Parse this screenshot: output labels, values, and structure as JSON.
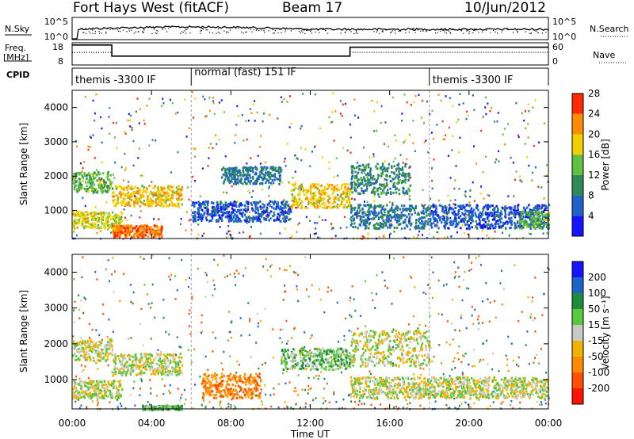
{
  "header": {
    "station": "Fort Hays West (fitACF)",
    "beam": "Beam 17",
    "date": "10/Jun/2012"
  },
  "noise_panel": {
    "left_label": "N.Sky",
    "right_label": "N.Search",
    "left_ticks": [
      "10^5",
      "10^0"
    ],
    "right_ticks": [
      "10^5",
      "10^0"
    ]
  },
  "freq_panel": {
    "left_label_1": "Freq.",
    "left_label_2": "[MHz]",
    "right_label": "Nave",
    "left_ticks": [
      18,
      8
    ],
    "right_ticks": [
      60,
      0
    ],
    "freq_segments": [
      {
        "from": 0,
        "to": 2,
        "value": 17
      },
      {
        "from": 2,
        "to": 14,
        "value": 12
      },
      {
        "from": 14,
        "to": 24,
        "value": 16
      }
    ],
    "nave_segments": [
      {
        "from": 0,
        "to": 2,
        "value": 34
      },
      {
        "from": 2,
        "to": 14,
        "value": 24
      },
      {
        "from": 14,
        "to": 24,
        "value": 34
      }
    ]
  },
  "cpid": {
    "label": "CPID",
    "segments": [
      {
        "from": 0.0,
        "to": 6.0,
        "text": "themis -3300 IF"
      },
      {
        "from": 6.0,
        "to": 18.0,
        "text": "normal (fast) 151 IF"
      },
      {
        "from": 18.0,
        "to": 24.0,
        "text": "themis -3300 IF"
      }
    ]
  },
  "axes": {
    "xlabel": "Time UT",
    "ylabel_top": "Slant Range [km]",
    "ylabel_bottom": "Slant Range [km]",
    "xticks": [
      "00:00",
      "04:00",
      "08:00",
      "12:00",
      "16:00",
      "20:00",
      "00:00"
    ],
    "yticks": [
      "1000",
      "2000",
      "3000",
      "4000"
    ]
  },
  "colorbars": {
    "power": {
      "title": "Power [dB]",
      "labels": [
        "4",
        "8",
        "12",
        "16",
        "20",
        "24",
        "28"
      ],
      "colors": [
        "#1414ff",
        "#1e64c8",
        "#2e8b57",
        "#60c040",
        "#f0d000",
        "#ff8c00",
        "#ff2a00"
      ]
    },
    "velocity": {
      "title": "Velocity [m s⁻¹]",
      "labels": [
        "200",
        "100",
        "50",
        "15",
        "-15",
        "-50",
        "-100",
        "-200"
      ],
      "colors": [
        "#1414ff",
        "#1e64c8",
        "#1e8c3c",
        "#5ac83c",
        "#c8c8c8",
        "#f0b400",
        "#ff8c00",
        "#ff5000",
        "#ff1400"
      ]
    }
  },
  "chart_data": {
    "type": "heatmap",
    "title": "Fort Hays West (fitACF)",
    "xlabel": "Time UT",
    "ylabel": "Slant Range [km]",
    "xlim_hours": [
      0,
      24
    ],
    "ylim_km": [
      180,
      4500
    ],
    "panels": [
      {
        "name": "Power [dB]",
        "clim": [
          0,
          30
        ],
        "regions": [
          {
            "t0": 0.0,
            "t1": 2.0,
            "r0": 1550,
            "r1": 2150,
            "value": 14
          },
          {
            "t0": 2.0,
            "t1": 5.5,
            "r0": 1150,
            "r1": 1750,
            "value": 20
          },
          {
            "t0": 0.0,
            "t1": 2.5,
            "r0": 500,
            "r1": 1000,
            "value": 18
          },
          {
            "t0": 2.0,
            "t1": 4.5,
            "r0": 250,
            "r1": 600,
            "value": 25
          },
          {
            "t0": 6.0,
            "t1": 11.0,
            "r0": 700,
            "r1": 1300,
            "value": 6
          },
          {
            "t0": 7.5,
            "t1": 10.5,
            "r0": 1800,
            "r1": 2300,
            "value": 8
          },
          {
            "t0": 11.0,
            "t1": 14.0,
            "r0": 1100,
            "r1": 1800,
            "value": 20
          },
          {
            "t0": 14.0,
            "t1": 17.0,
            "r0": 1500,
            "r1": 2400,
            "value": 10
          },
          {
            "t0": 14.0,
            "t1": 18.0,
            "r0": 500,
            "r1": 1200,
            "value": 8
          },
          {
            "t0": 18.0,
            "t1": 24.0,
            "r0": 500,
            "r1": 1200,
            "value": 6
          },
          {
            "t0": 22.5,
            "t1": 24.0,
            "r0": 500,
            "r1": 1000,
            "value": 14
          }
        ]
      },
      {
        "name": "Velocity [m s⁻¹]",
        "clim": [
          -200,
          200
        ],
        "regions": [
          {
            "t0": 0.0,
            "t1": 2.0,
            "r0": 1550,
            "r1": 2150,
            "value": 0
          },
          {
            "t0": 2.0,
            "t1": 5.5,
            "r0": 1150,
            "r1": 1750,
            "value": 0
          },
          {
            "t0": 0.0,
            "t1": 2.5,
            "r0": 500,
            "r1": 1000,
            "value": 0
          },
          {
            "t0": 6.5,
            "t1": 9.5,
            "r0": 500,
            "r1": 1200,
            "value": -80
          },
          {
            "t0": 10.5,
            "t1": 14.0,
            "r0": 1300,
            "r1": 1900,
            "value": 30
          },
          {
            "t0": 14.0,
            "t1": 18.0,
            "r0": 1400,
            "r1": 2400,
            "value": 0
          },
          {
            "t0": 14.0,
            "t1": 24.0,
            "r0": 500,
            "r1": 1100,
            "value": 0
          },
          {
            "t0": 3.5,
            "t1": 5.5,
            "r0": 180,
            "r1": 300,
            "value": 40
          }
        ]
      }
    ]
  }
}
